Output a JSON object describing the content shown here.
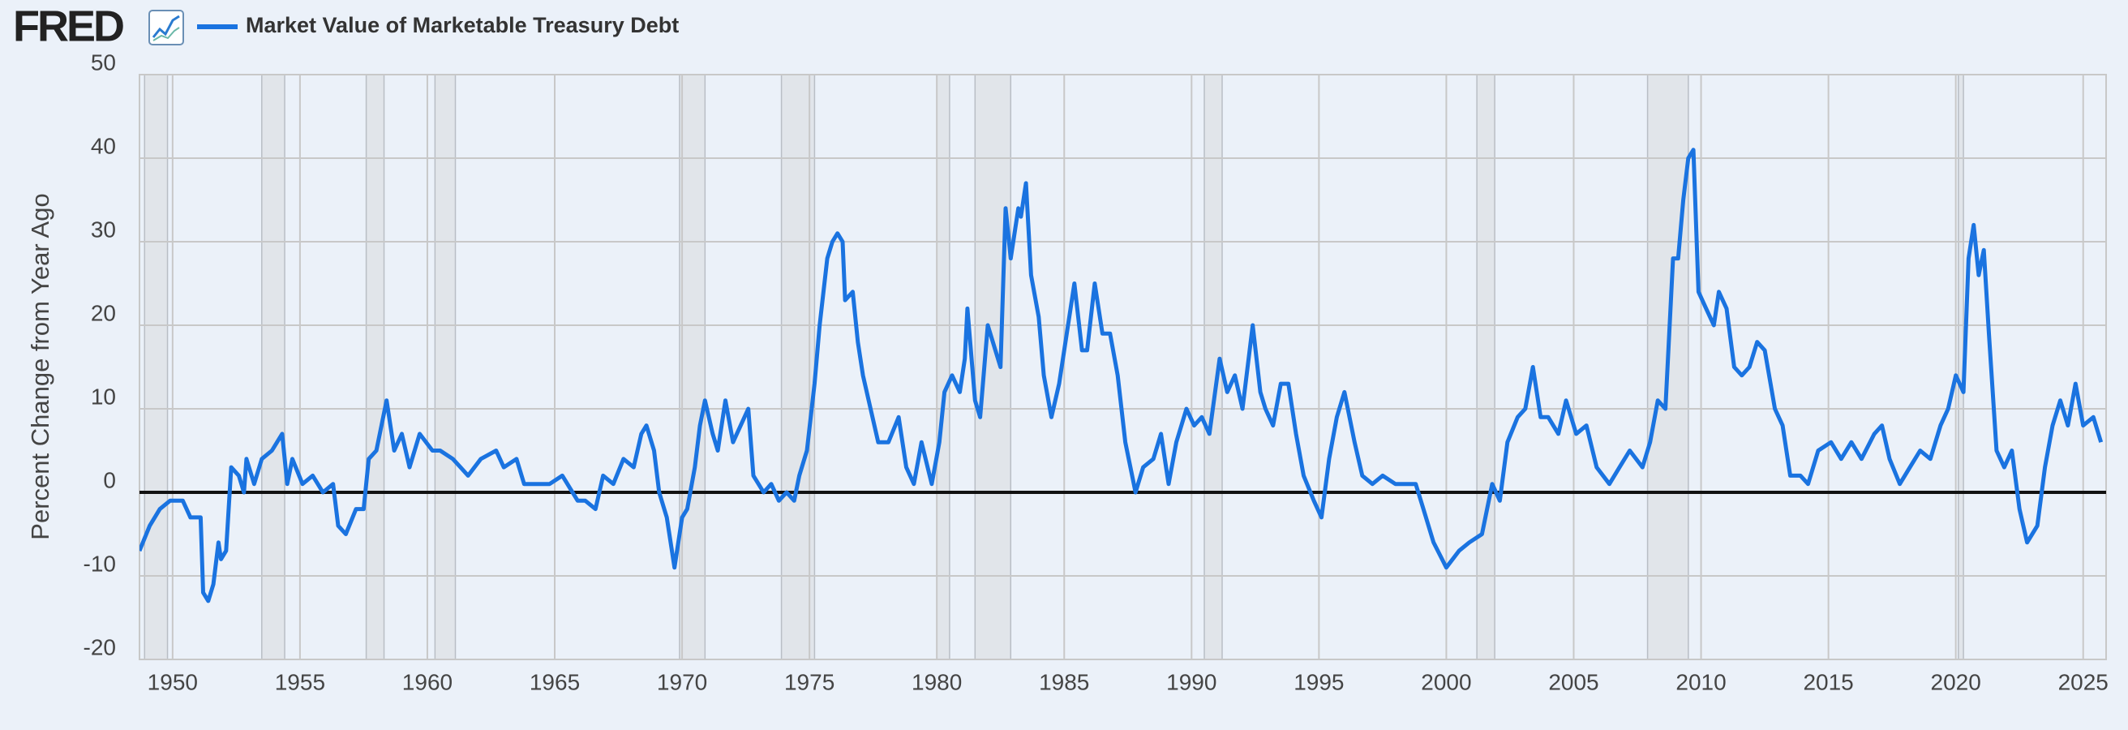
{
  "logo": "FRED",
  "chart_data": {
    "type": "line",
    "y_label": "Percent Change from Year Ago",
    "xlim": [
      1948.7,
      2025.9
    ],
    "ylim": [
      -20,
      50
    ],
    "xticks": [
      1950,
      1955,
      1960,
      1965,
      1970,
      1975,
      1980,
      1985,
      1990,
      1995,
      2000,
      2005,
      2010,
      2015,
      2020,
      2025
    ],
    "yticks": [
      -20,
      -10,
      0,
      10,
      20,
      30,
      40,
      50
    ],
    "grid": true,
    "hline": 0,
    "recessions": [
      [
        1948.9,
        1949.8
      ],
      [
        1953.5,
        1954.4
      ],
      [
        1957.6,
        1958.3
      ],
      [
        1960.3,
        1961.1
      ],
      [
        1969.9,
        1970.9
      ],
      [
        1973.9,
        1975.2
      ],
      [
        1980.0,
        1980.5
      ],
      [
        1981.5,
        1982.9
      ],
      [
        1990.5,
        1991.2
      ],
      [
        2001.2,
        2001.9
      ],
      [
        2007.9,
        2009.5
      ],
      [
        2020.1,
        2020.3
      ]
    ],
    "series": [
      {
        "name": "Market Value of Marketable Treasury Debt",
        "color": "#1a73e0",
        "x": [
          1948.7,
          1949.1,
          1949.5,
          1949.9,
          1950.4,
          1950.7,
          1951.1,
          1951.2,
          1951.4,
          1951.6,
          1951.8,
          1951.9,
          1952.1,
          1952.3,
          1952.6,
          1952.8,
          1952.9,
          1953.2,
          1953.5,
          1953.9,
          1954.3,
          1954.5,
          1954.7,
          1955.1,
          1955.5,
          1955.9,
          1956.3,
          1956.5,
          1956.8,
          1957.2,
          1957.5,
          1957.7,
          1958.0,
          1958.4,
          1958.7,
          1959.0,
          1959.3,
          1959.7,
          1960.2,
          1960.5,
          1961.0,
          1961.3,
          1961.6,
          1962.1,
          1962.7,
          1963.0,
          1963.5,
          1963.8,
          1964.3,
          1964.8,
          1965.3,
          1965.9,
          1966.2,
          1966.6,
          1966.9,
          1967.3,
          1967.7,
          1968.1,
          1968.4,
          1968.6,
          1968.9,
          1969.1,
          1969.4,
          1969.7,
          1970.0,
          1970.2,
          1970.5,
          1970.7,
          1970.9,
          1971.2,
          1971.4,
          1971.7,
          1972.0,
          1972.3,
          1972.6,
          1972.8,
          1973.2,
          1973.5,
          1973.8,
          1974.1,
          1974.4,
          1974.6,
          1974.9,
          1975.2,
          1975.4,
          1975.7,
          1975.9,
          1976.1,
          1976.3,
          1976.4,
          1976.7,
          1976.9,
          1977.1,
          1977.4,
          1977.7,
          1978.1,
          1978.5,
          1978.8,
          1979.1,
          1979.4,
          1979.8,
          1980.1,
          1980.3,
          1980.6,
          1980.9,
          1981.1,
          1981.2,
          1981.5,
          1981.7,
          1982.0,
          1982.3,
          1982.5,
          1982.7,
          1982.9,
          1983.2,
          1983.3,
          1983.5,
          1983.7,
          1984.0,
          1984.2,
          1984.5,
          1984.8,
          1985.1,
          1985.4,
          1985.7,
          1985.9,
          1986.2,
          1986.5,
          1986.8,
          1987.1,
          1987.4,
          1987.6,
          1987.8,
          1988.1,
          1988.5,
          1988.8,
          1989.1,
          1989.4,
          1989.8,
          1990.1,
          1990.4,
          1990.7,
          1991.1,
          1991.4,
          1991.7,
          1992.0,
          1992.4,
          1992.7,
          1992.9,
          1993.2,
          1993.5,
          1993.8,
          1994.1,
          1994.4,
          1994.8,
          1995.1,
          1995.4,
          1995.7,
          1996.0,
          1996.4,
          1996.7,
          1997.1,
          1997.5,
          1998.0,
          1998.4,
          1998.8,
          1999.1,
          1999.5,
          2000.0,
          2000.5,
          2000.9,
          2001.4,
          2001.8,
          2002.1,
          2002.4,
          2002.8,
          2003.1,
          2003.4,
          2003.7,
          2004.0,
          2004.4,
          2004.7,
          2005.1,
          2005.5,
          2005.9,
          2006.4,
          2006.8,
          2007.2,
          2007.7,
          2008.0,
          2008.3,
          2008.6,
          2008.9,
          2009.1,
          2009.3,
          2009.5,
          2009.7,
          2009.9,
          2010.2,
          2010.5,
          2010.7,
          2011.0,
          2011.3,
          2011.6,
          2011.9,
          2012.2,
          2012.5,
          2012.9,
          2013.2,
          2013.5,
          2013.9,
          2014.2,
          2014.6,
          2015.1,
          2015.5,
          2015.9,
          2016.3,
          2016.8,
          2017.1,
          2017.4,
          2017.8,
          2018.2,
          2018.6,
          2019.0,
          2019.4,
          2019.7,
          2020.0,
          2020.3,
          2020.5,
          2020.7,
          2020.9,
          2021.1,
          2021.3,
          2021.6,
          2021.9,
          2022.2,
          2022.5,
          2022.8,
          2023.2,
          2023.5,
          2023.8,
          2024.1,
          2024.4,
          2024.7,
          2025.0,
          2025.4,
          2025.7
        ],
        "values": [
          -7,
          -4,
          -2,
          -1,
          -1,
          -3,
          -3,
          -12,
          -13,
          -11,
          -6,
          -8,
          -7,
          3,
          2,
          0,
          4,
          1,
          4,
          5,
          7,
          1,
          4,
          1,
          2,
          0,
          1,
          -4,
          -5,
          -2,
          -2,
          4,
          5,
          11,
          5,
          7,
          3,
          7,
          5,
          5,
          4,
          3,
          2,
          4,
          5,
          3,
          4,
          1,
          1,
          1,
          2,
          -1,
          -1,
          -2,
          2,
          1,
          4,
          3,
          7,
          8,
          5,
          0,
          -3,
          -9,
          -3,
          -2,
          3,
          8,
          11,
          7,
          5,
          11,
          6,
          8,
          10,
          2,
          0,
          1,
          -1,
          0,
          -1,
          2,
          5,
          13,
          20,
          28,
          30,
          31,
          30,
          23,
          24,
          18,
          14,
          10,
          6,
          6,
          9,
          3,
          1,
          6,
          1,
          6,
          12,
          14,
          12,
          16,
          22,
          11,
          9,
          20,
          17,
          15,
          34,
          28,
          34,
          33,
          37,
          26,
          21,
          14,
          9,
          13,
          19,
          25,
          17,
          17,
          25,
          19,
          19,
          14,
          6,
          3,
          0,
          3,
          4,
          7,
          1,
          6,
          10,
          8,
          9,
          7,
          16,
          12,
          14,
          10,
          20,
          12,
          10,
          8,
          13,
          13,
          7,
          2,
          -1,
          -3,
          4,
          9,
          12,
          6,
          2,
          1,
          2,
          1,
          1,
          1,
          -2,
          -6,
          -9,
          -7,
          -6,
          -5,
          1,
          -1,
          6,
          9,
          10,
          15,
          9,
          9,
          7,
          11,
          7,
          8,
          3,
          1,
          3,
          5,
          3,
          6,
          11,
          10,
          28,
          28,
          35,
          40,
          41,
          24,
          22,
          20,
          24,
          22,
          15,
          14,
          15,
          18,
          17,
          10,
          8,
          2,
          2,
          1,
          5,
          6,
          4,
          6,
          4,
          7,
          8,
          4,
          1,
          3,
          5,
          4,
          8,
          10,
          14,
          12,
          28,
          32,
          26,
          29,
          19,
          5,
          3,
          5,
          -2,
          -6,
          -4,
          3,
          8,
          11,
          8,
          13,
          8,
          9,
          6
        ]
      }
    ]
  }
}
